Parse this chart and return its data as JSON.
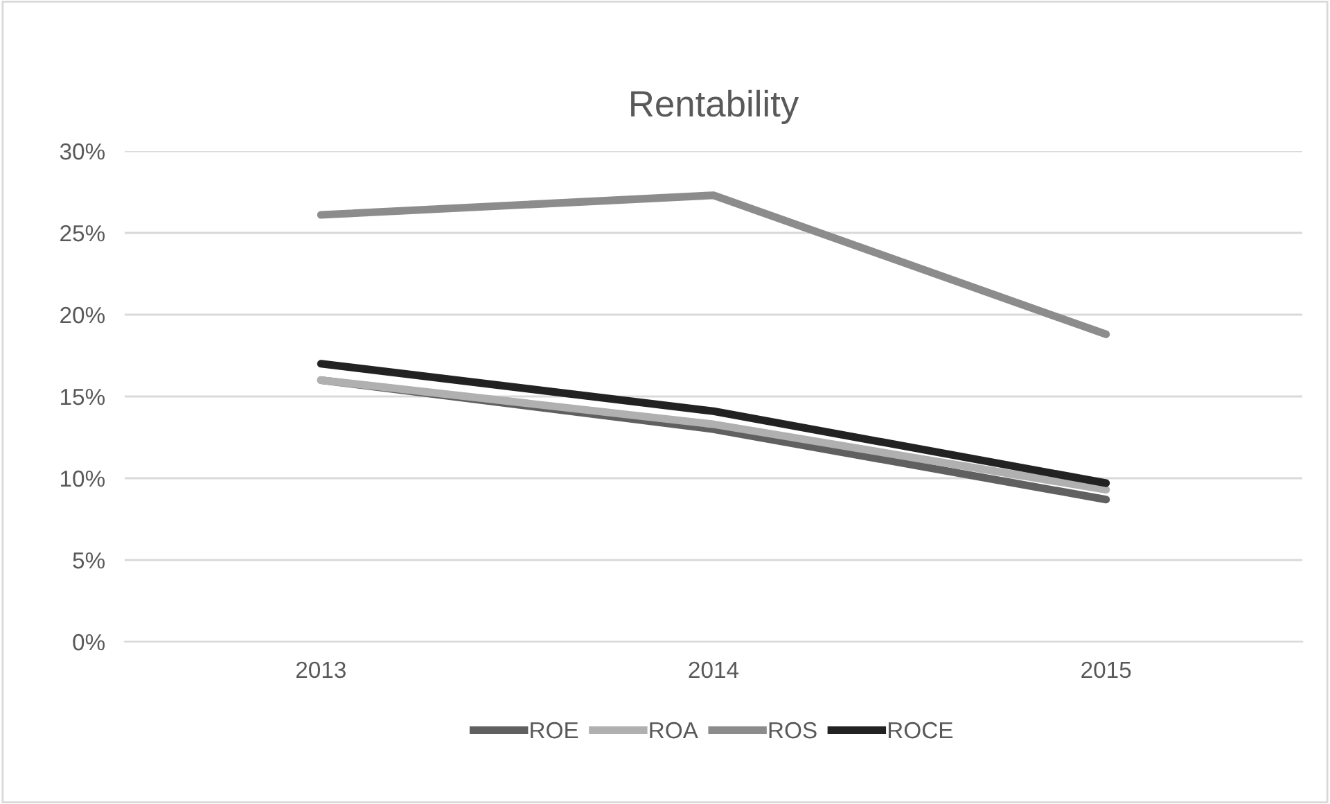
{
  "chart_data": {
    "type": "line",
    "title": "Rentability",
    "categories": [
      "2013",
      "2014",
      "2015"
    ],
    "series": [
      {
        "name": "ROE",
        "color": "#606060",
        "values": [
          16.0,
          13.0,
          8.7
        ]
      },
      {
        "name": "ROA",
        "color": "#b0b0b0",
        "values": [
          16.0,
          13.3,
          9.3
        ]
      },
      {
        "name": "ROS",
        "color": "#8c8c8c",
        "values": [
          26.1,
          27.3,
          18.8
        ]
      },
      {
        "name": "ROCE",
        "color": "#222222",
        "values": [
          17.0,
          14.1,
          9.7
        ]
      }
    ],
    "ylim": [
      0,
      30
    ],
    "yticks": [
      {
        "value": 0,
        "label": "0%"
      },
      {
        "value": 5,
        "label": "5%"
      },
      {
        "value": 10,
        "label": "10%"
      },
      {
        "value": 15,
        "label": "15%"
      },
      {
        "value": 20,
        "label": "20%"
      },
      {
        "value": 25,
        "label": "25%"
      },
      {
        "value": 30,
        "label": "30%"
      }
    ],
    "grid": "y",
    "legend": "bottom",
    "marker": "none",
    "line_style": "solid"
  }
}
